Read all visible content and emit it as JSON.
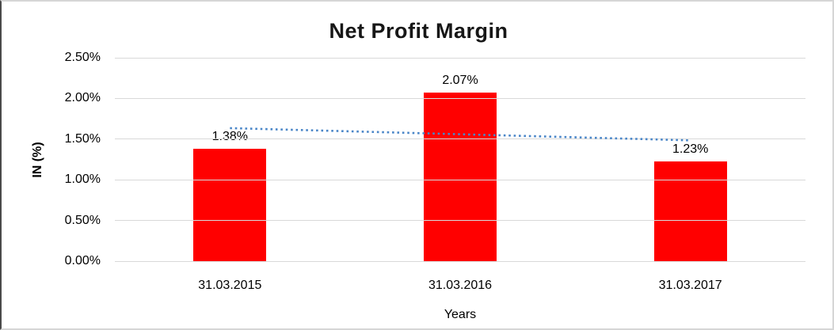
{
  "chart_data": {
    "type": "bar",
    "title": "Net Profit Margin",
    "xlabel": "Years",
    "ylabel": "IN (%)",
    "categories": [
      "31.03.2015",
      "31.03.2016",
      "31.03.2017"
    ],
    "series": [
      {
        "name": "Net Profit Margin",
        "values": [
          1.38,
          2.07,
          1.23
        ],
        "data_labels": [
          "1.38%",
          "2.07%",
          "1.23%"
        ],
        "color": "#ff0000"
      }
    ],
    "y_ticks": {
      "values": [
        0,
        0.5,
        1.0,
        1.5,
        2.0,
        2.5
      ],
      "labels": [
        "0.00%",
        "0.50%",
        "1.00%",
        "1.50%",
        "2.00%",
        "2.50%"
      ]
    },
    "ylim": [
      0,
      2.5
    ],
    "grid": true,
    "legend": "none",
    "trendline": {
      "type": "linear",
      "style": "dotted",
      "color": "#4a86c8",
      "start_value": 1.635,
      "end_value": 1.485
    },
    "gridline_color": "#d9d9d9"
  }
}
